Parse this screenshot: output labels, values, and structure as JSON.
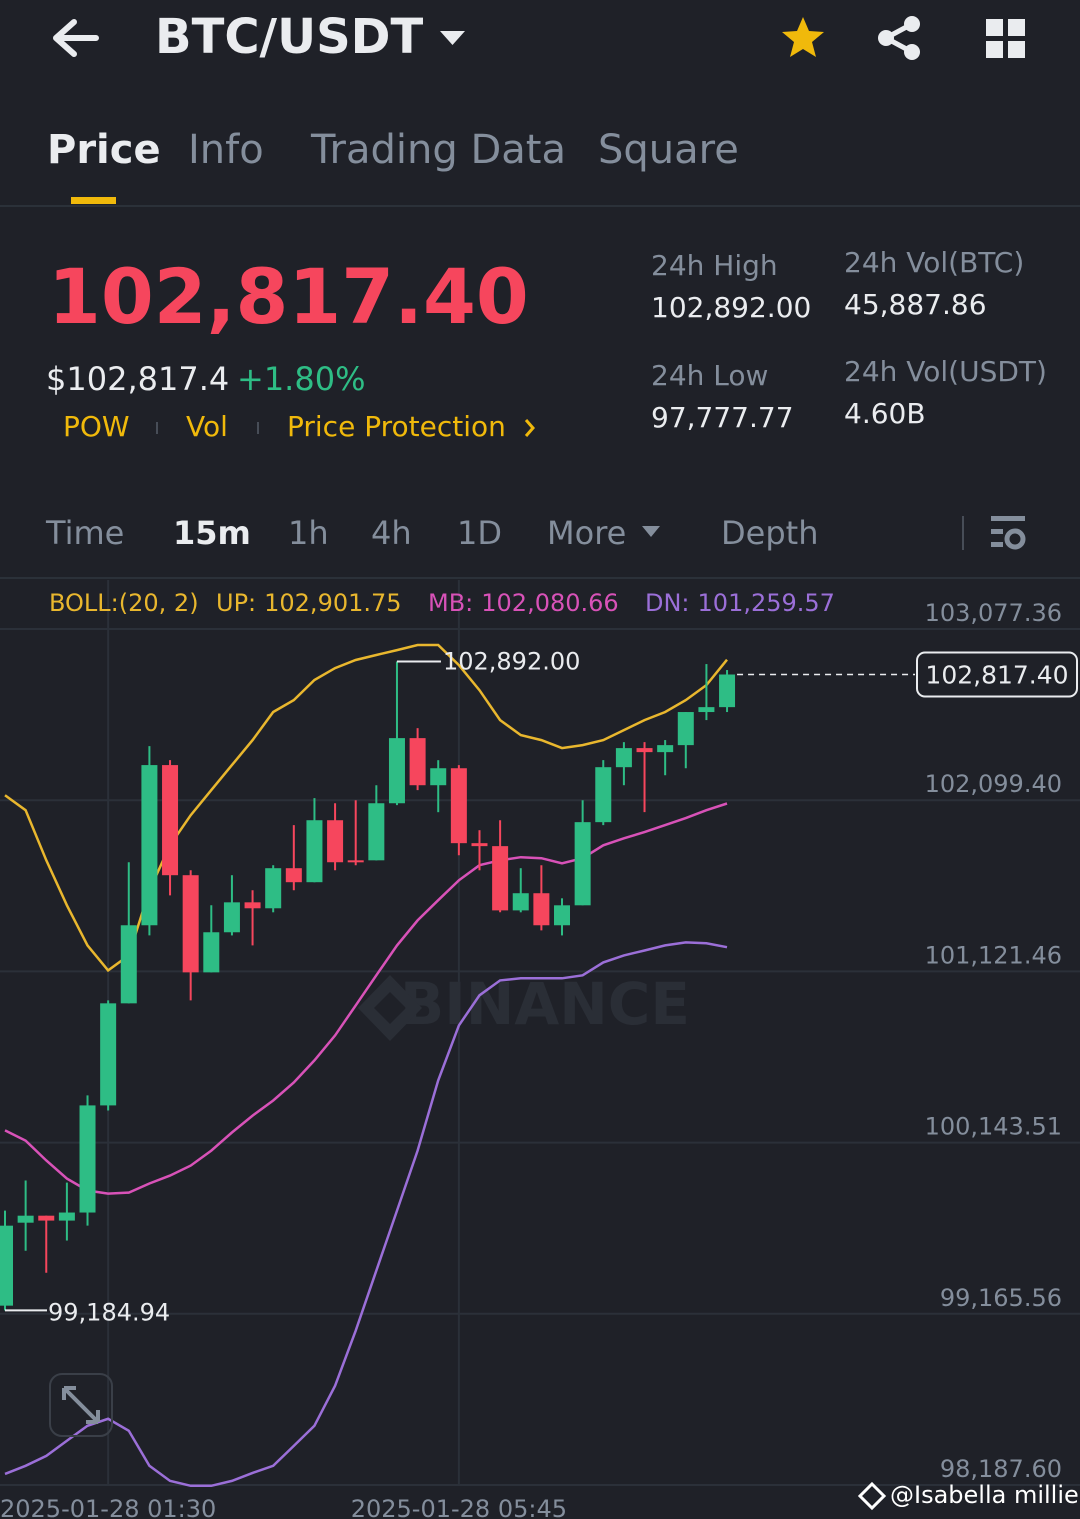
{
  "header": {
    "title": "BTC/USDT"
  },
  "tabs": [
    "Price",
    "Info",
    "Trading Data",
    "Square"
  ],
  "ticker": {
    "price": "102,817.40",
    "usd_price": "$102,817.4",
    "change": "+1.80%",
    "tags": [
      "POW",
      "Vol",
      "Price Protection"
    ],
    "stats": [
      {
        "label": "24h High",
        "value": "102,892.00"
      },
      {
        "label": "24h Vol(BTC)",
        "value": "45,887.86"
      },
      {
        "label": "24h Low",
        "value": "97,777.77"
      },
      {
        "label": "24h Vol(USDT)",
        "value": "4.60B"
      }
    ]
  },
  "intervals": [
    "Time",
    "15m",
    "1h",
    "4h",
    "1D",
    "More",
    "Depth"
  ],
  "footer": {
    "credit": "@Isabella millie"
  },
  "chart_data": {
    "type": "candlestick",
    "boll_label": "BOLL:(20, 2)",
    "watermark": "BINANCE",
    "categories": [
      null,
      null,
      null,
      null,
      null,
      "2025-01-28 01:30",
      null,
      null,
      null,
      null,
      null,
      null,
      null,
      null,
      null,
      null,
      null,
      null,
      null,
      null,
      null,
      null,
      "2025-01-28 05:45",
      null,
      null,
      null,
      null,
      null,
      null,
      null,
      null,
      null,
      null,
      null,
      null,
      null
    ],
    "open": [
      99212,
      99686,
      99726,
      99698,
      99744,
      100356,
      100939,
      101385,
      102300,
      101671,
      101116,
      101345,
      101516,
      101482,
      101711,
      101631,
      101985,
      101756,
      101756,
      102082,
      102454,
      102185,
      102282,
      101854,
      101837,
      101470,
      101568,
      101385,
      101499,
      101974,
      102288,
      102397,
      102374,
      102414,
      102603,
      102631
    ],
    "high": [
      99755,
      99927,
      99726,
      99915,
      100413,
      100956,
      101745,
      102408,
      102328,
      101699,
      101499,
      101671,
      101585,
      101728,
      101957,
      102111,
      102082,
      102099,
      102185,
      102892,
      102511,
      102328,
      102300,
      101928,
      101985,
      101711,
      101728,
      101539,
      102099,
      102328,
      102431,
      102431,
      102443,
      102603,
      102877,
      102843
    ],
    "low": [
      99184.94,
      99526,
      99400,
      99584,
      99669,
      100327,
      100939,
      101327,
      101556,
      100956,
      101116,
      101327,
      101270,
      101459,
      101585,
      101631,
      101699,
      101728,
      101756,
      102071,
      102157,
      102031,
      101785,
      101699,
      101459,
      101459,
      101356,
      101327,
      101499,
      101957,
      102185,
      102031,
      102242,
      102282,
      102557,
      102603
    ],
    "close": [
      99669,
      99726,
      99698,
      99744,
      100356,
      100939,
      101385,
      102300,
      101671,
      101116,
      101345,
      101516,
      101482,
      101711,
      101631,
      101985,
      101745,
      101745,
      102082,
      102454,
      102185,
      102282,
      101854,
      101837,
      101470,
      101568,
      101385,
      101499,
      101974,
      102288,
      102397,
      102374,
      102414,
      102603,
      102631,
      102817.4
    ],
    "up_color": "#2ebd85",
    "down_color": "#f6465d",
    "series": [
      {
        "name": "UP:",
        "color": "#e9b72e",
        "last_label": "102,901.75",
        "values": [
          102128,
          102042,
          101756,
          101499,
          101270,
          101127,
          101213,
          101585,
          101842,
          102014,
          102157,
          102300,
          102443,
          102603,
          102671,
          102786,
          102854,
          102900,
          102929,
          102957,
          102986,
          102986,
          102871,
          102728,
          102557,
          102471,
          102443,
          102397,
          102414,
          102443,
          102500,
          102557,
          102603,
          102671,
          102757,
          102901.75
        ]
      },
      {
        "name": "MB:",
        "color": "#d852b8",
        "last_label": "102,080.66",
        "values": [
          100213,
          100155,
          100041,
          99938,
          99870,
          99852,
          99858,
          99910,
          99955,
          100012,
          100098,
          100201,
          100298,
          100384,
          100487,
          100613,
          100756,
          100927,
          101099,
          101270,
          101413,
          101528,
          101642,
          101728,
          101756,
          101774,
          101768,
          101739,
          101768,
          101842,
          101882,
          101917,
          101957,
          101997,
          102042,
          102080.66
        ]
      },
      {
        "name": "DN:",
        "color": "#9b6fd8",
        "last_label": "101,259.57",
        "values": [
          98251,
          98297,
          98354,
          98440,
          98526,
          98566,
          98497,
          98297,
          98211,
          98183,
          98183,
          98211,
          98257,
          98297,
          98411,
          98526,
          98755,
          99069,
          99412,
          99755,
          100098,
          100499,
          100813,
          100985,
          101070,
          101082,
          101082,
          101082,
          101099,
          101173,
          101213,
          101241,
          101270,
          101287,
          101282,
          101259.57
        ]
      }
    ],
    "ylim": [
      98187.6,
      103077.36
    ],
    "yticks": [
      {
        "value": 103077.36,
        "label": "103,077.36"
      },
      {
        "value": 102099.4,
        "label": "102,099.40"
      },
      {
        "value": 101121.46,
        "label": "101,121.46"
      },
      {
        "value": 100143.51,
        "label": "100,143.51"
      },
      {
        "value": 99165.56,
        "label": "99,165.56"
      },
      {
        "value": 98187.6,
        "label": "98,187.60"
      }
    ],
    "grid": true,
    "high_marker": {
      "value": 102892,
      "label": "102,892.00"
    },
    "low_marker": {
      "value": 99184.94,
      "label": "99,184.94"
    },
    "last_price": {
      "value": 102817.4,
      "label": "102,817.40"
    }
  }
}
